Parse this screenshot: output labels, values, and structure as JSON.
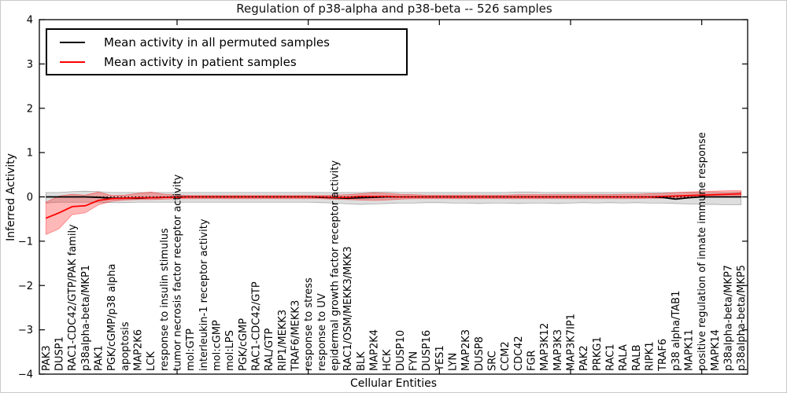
{
  "legend": {
    "items": [
      {
        "label": "Mean activity in all permuted samples",
        "color": "#000000"
      },
      {
        "label": "Mean activity in patient samples",
        "color": "#ff0000"
      }
    ]
  },
  "chart_data": {
    "type": "line",
    "title": "Regulation of p38-alpha and p38-beta -- 526 samples",
    "xlabel": "Cellular Entities",
    "ylabel": "Inferred Activity",
    "ylim": [
      -4,
      4
    ],
    "yticks": [
      -4,
      -3,
      -2,
      -1,
      0,
      1,
      2,
      3,
      4
    ],
    "xtick_indices": [
      10,
      20,
      30,
      40,
      50
    ],
    "grid": false,
    "legend_position": "upper left",
    "categories": [
      "PAK3",
      "DUSP1",
      "RAC1-CDC42/GTP/PAK family",
      "p38alpha-beta/MKP1",
      "PAK1",
      "PGK/cGMP/p38 alpha",
      "apoptosis",
      "MAP2K6",
      "LCK",
      "response to insulin stimulus",
      "tumor necrosis factor receptor activity",
      "mol:GTP",
      "interleukin-1 receptor activity",
      "mol:cGMP",
      "mol:LPS",
      "PGK/cGMP",
      "RAC1-CDC42/GTP",
      "RAL/GTP",
      "RIP1/MEKK3",
      "TRAF6/MEKK3",
      "response to stress",
      "response to UV",
      "epidermal growth factor receptor activity",
      "RAC1/OSM/MEKK3/MKK3",
      "BLK",
      "MAP2K4",
      "HCK",
      "DUSP10",
      "FYN",
      "DUSP16",
      "YES1",
      "LYN",
      "MAP2K3",
      "DUSP8",
      "SRC",
      "CCM2",
      "CDC42",
      "FGR",
      "MAP3K12",
      "MAP3K3",
      "MAP3K7IP1",
      "PAK2",
      "PRKG1",
      "RAC1",
      "RALA",
      "RALB",
      "RIPK1",
      "TRAF6",
      "p38 alpha/TAB1",
      "MAPK11",
      "positive regulation of innate immune response",
      "MAPK14",
      "p38alpha-beta/MKP7",
      "p38alpha-beta/MKP5"
    ],
    "series": [
      {
        "name": "Mean activity in all permuted samples",
        "color": "#000000",
        "style": "solid",
        "values": [
          0,
          0,
          0,
          0,
          -0.01,
          -0.03,
          -0.03,
          -0.03,
          -0.02,
          -0.01,
          0,
          0,
          0,
          0,
          0,
          0,
          0,
          0,
          0,
          0,
          0,
          -0.01,
          -0.02,
          -0.03,
          -0.02,
          -0.01,
          0,
          0,
          0,
          0,
          0,
          0,
          0,
          0,
          0,
          0,
          0,
          0,
          0,
          0,
          0,
          0,
          0,
          0,
          0,
          0,
          0,
          -0.01,
          -0.05,
          -0.02,
          0,
          0,
          0,
          0
        ]
      },
      {
        "name": "Mean activity in patient samples",
        "color": "#ff0000",
        "style": "solid",
        "values": [
          -0.48,
          -0.36,
          -0.22,
          -0.2,
          -0.08,
          -0.04,
          -0.03,
          -0.02,
          -0.02,
          -0.01,
          -0.01,
          0,
          0,
          0,
          0,
          0,
          0,
          0,
          0,
          0,
          0,
          0,
          -0.01,
          -0.01,
          0.01,
          0.01,
          0.01,
          0,
          0,
          0,
          0,
          0,
          0,
          0,
          0,
          0,
          0,
          0,
          0,
          0,
          0,
          0,
          0,
          0,
          0,
          0,
          0,
          0.01,
          0.02,
          0.03,
          0.04,
          0.05,
          0.06,
          0.07
        ]
      }
    ],
    "bands": [
      {
        "name": "permuted-confidence-band",
        "color": "#000000",
        "opacity": 0.13,
        "low": [
          -0.14,
          -0.12,
          -0.12,
          -0.12,
          -0.12,
          -0.13,
          -0.13,
          -0.12,
          -0.12,
          -0.12,
          -0.12,
          -0.12,
          -0.12,
          -0.12,
          -0.12,
          -0.12,
          -0.12,
          -0.12,
          -0.12,
          -0.12,
          -0.12,
          -0.13,
          -0.14,
          -0.16,
          -0.17,
          -0.16,
          -0.15,
          -0.14,
          -0.14,
          -0.13,
          -0.13,
          -0.14,
          -0.14,
          -0.15,
          -0.14,
          -0.14,
          -0.15,
          -0.14,
          -0.14,
          -0.15,
          -0.14,
          -0.13,
          -0.14,
          -0.13,
          -0.14,
          -0.13,
          -0.14,
          -0.14,
          -0.15,
          -0.16,
          -0.17,
          -0.17,
          -0.18,
          -0.18
        ],
        "high": [
          0.1,
          0.1,
          0.12,
          0.13,
          0.12,
          0.1,
          0.1,
          0.1,
          0.1,
          0.1,
          0.1,
          0.1,
          0.1,
          0.1,
          0.1,
          0.1,
          0.1,
          0.1,
          0.1,
          0.1,
          0.1,
          0.1,
          0.1,
          0.1,
          0.1,
          0.11,
          0.11,
          0.1,
          0.1,
          0.1,
          0.1,
          0.1,
          0.1,
          0.1,
          0.1,
          0.1,
          0.11,
          0.11,
          0.1,
          0.1,
          0.1,
          0.1,
          0.1,
          0.1,
          0.1,
          0.1,
          0.1,
          0.1,
          0.1,
          0.1,
          0.1,
          0.1,
          0.1,
          0.11
        ]
      },
      {
        "name": "patient-confidence-band",
        "color": "#ff0000",
        "opacity": 0.28,
        "low": [
          -0.85,
          -0.72,
          -0.4,
          -0.36,
          -0.18,
          -0.1,
          -0.07,
          -0.06,
          -0.06,
          -0.05,
          -0.04,
          -0.04,
          -0.04,
          -0.04,
          -0.04,
          -0.04,
          -0.04,
          -0.04,
          -0.04,
          -0.04,
          -0.04,
          -0.04,
          -0.05,
          -0.06,
          -0.07,
          -0.08,
          -0.07,
          -0.05,
          -0.04,
          -0.04,
          -0.04,
          -0.04,
          -0.04,
          -0.04,
          -0.04,
          -0.04,
          -0.04,
          -0.04,
          -0.04,
          -0.04,
          -0.04,
          -0.04,
          -0.04,
          -0.04,
          -0.04,
          -0.04,
          -0.03,
          -0.03,
          -0.02,
          -0.01,
          0,
          0,
          0.01,
          0.01
        ],
        "high": [
          -0.12,
          0.02,
          0.06,
          0.04,
          0.11,
          0.03,
          0.04,
          0.08,
          0.11,
          0.06,
          0.04,
          0.03,
          0.03,
          0.03,
          0.03,
          0.03,
          0.03,
          0.03,
          0.03,
          0.03,
          0.03,
          0.03,
          0.04,
          0.05,
          0.07,
          0.09,
          0.08,
          0.06,
          0.05,
          0.04,
          0.04,
          0.04,
          0.04,
          0.04,
          0.04,
          0.04,
          0.05,
          0.05,
          0.05,
          0.05,
          0.05,
          0.05,
          0.05,
          0.05,
          0.06,
          0.06,
          0.07,
          0.08,
          0.1,
          0.11,
          0.12,
          0.13,
          0.14,
          0.14
        ]
      }
    ],
    "zero_line": {
      "value": 0,
      "color": "#000000",
      "style": "dotted"
    }
  }
}
